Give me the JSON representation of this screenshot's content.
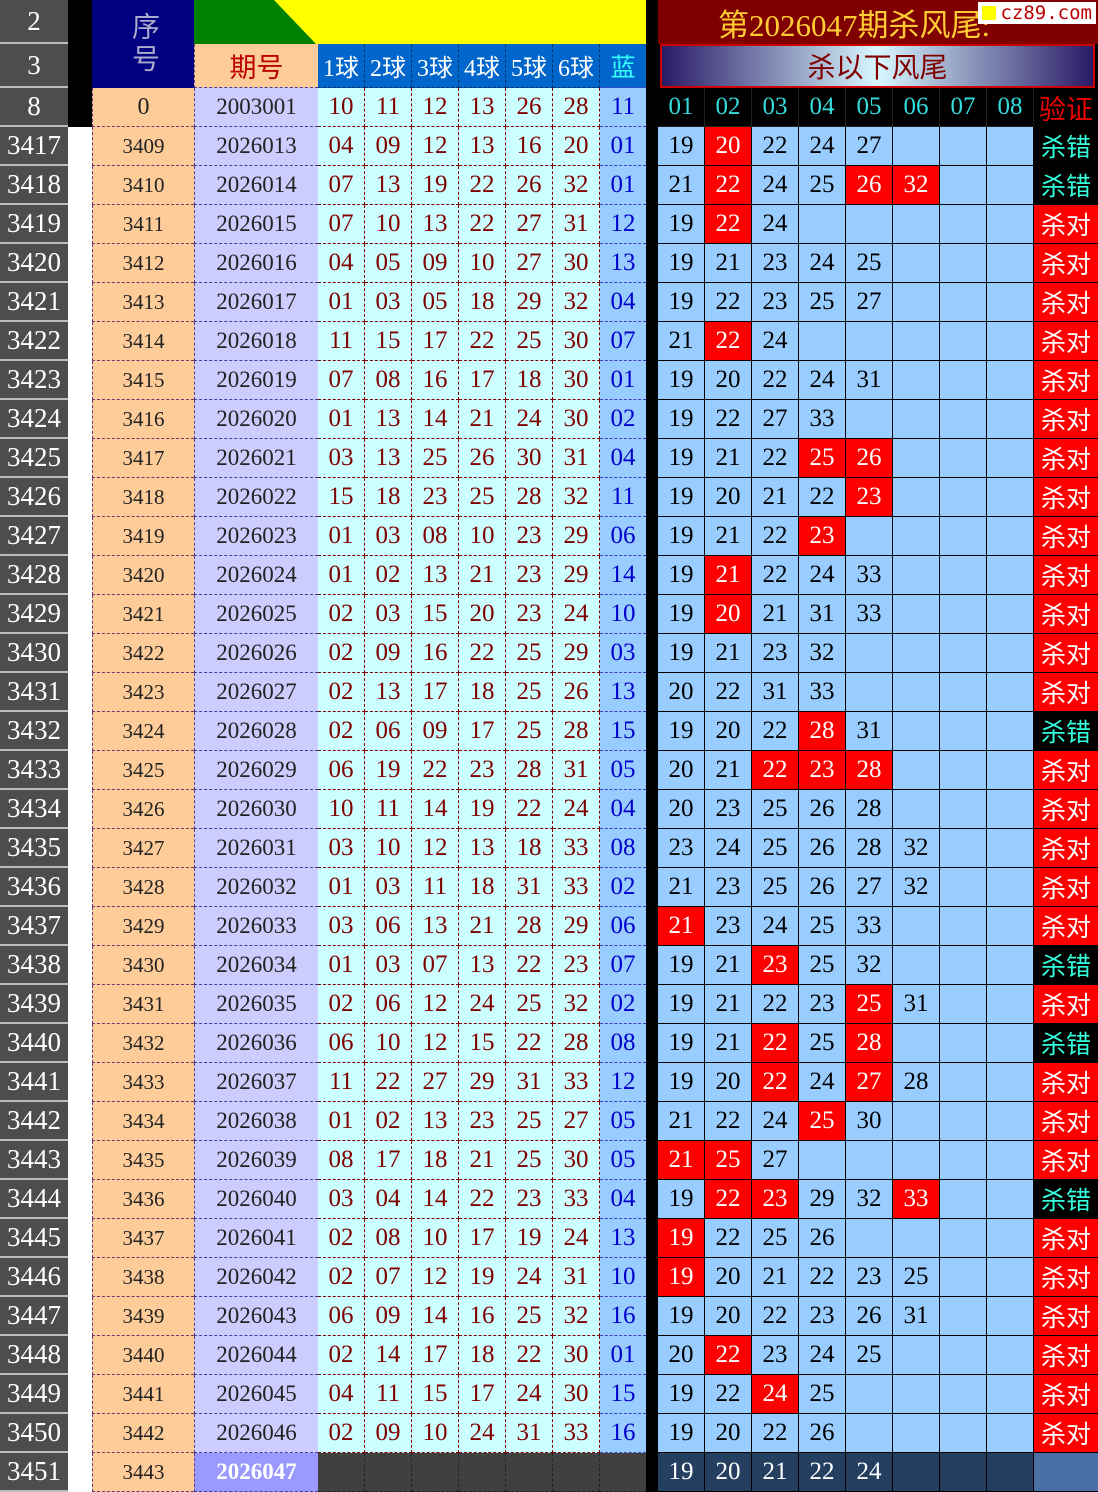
{
  "header": {
    "row_labels": [
      "2",
      "3",
      "8"
    ],
    "seq_label": "序号",
    "period_label": "期号",
    "ball_labels": [
      "1球",
      "2球",
      "3球",
      "4球",
      "5球",
      "6球"
    ],
    "blue_label": "蓝",
    "title": "第2026047期杀风尾:",
    "banner": "杀以下风尾",
    "kill_cols": [
      "01",
      "02",
      "03",
      "04",
      "05",
      "06",
      "07",
      "08"
    ],
    "verify_label": "验证",
    "watermark": "cz89.com",
    "base_row": {
      "seq": "0",
      "period": "2003001",
      "balls": [
        "10",
        "11",
        "12",
        "13",
        "26",
        "28"
      ],
      "blue": "11"
    }
  },
  "colors": {
    "hit": "#ff0000",
    "correct_bg": "#ff0000",
    "wrong_bg": "#000000",
    "wrong_text": "#33ffdd",
    "title": "#ffcc33"
  },
  "rows": [
    [
      "3417",
      "3409",
      "2026013",
      [
        "04",
        "09",
        "12",
        "13",
        "16",
        "20"
      ],
      "01",
      [
        "19",
        "20",
        "22",
        "24",
        "27"
      ],
      "杀错"
    ],
    [
      "3418",
      "3410",
      "2026014",
      [
        "07",
        "13",
        "19",
        "22",
        "26",
        "32"
      ],
      "01",
      [
        "21",
        "22",
        "24",
        "25",
        "26",
        "32"
      ],
      "杀错"
    ],
    [
      "3419",
      "3411",
      "2026015",
      [
        "07",
        "10",
        "13",
        "22",
        "27",
        "31"
      ],
      "12",
      [
        "19",
        "22",
        "24"
      ],
      "杀对"
    ],
    [
      "3420",
      "3412",
      "2026016",
      [
        "04",
        "05",
        "09",
        "10",
        "27",
        "30"
      ],
      "13",
      [
        "19",
        "21",
        "23",
        "24",
        "25"
      ],
      "杀对"
    ],
    [
      "3421",
      "3413",
      "2026017",
      [
        "01",
        "03",
        "05",
        "18",
        "29",
        "32"
      ],
      "04",
      [
        "19",
        "22",
        "23",
        "25",
        "27"
      ],
      "杀对"
    ],
    [
      "3422",
      "3414",
      "2026018",
      [
        "11",
        "15",
        "17",
        "22",
        "25",
        "30"
      ],
      "07",
      [
        "21",
        "22",
        "24"
      ],
      "杀对"
    ],
    [
      "3423",
      "3415",
      "2026019",
      [
        "07",
        "08",
        "16",
        "17",
        "18",
        "30"
      ],
      "01",
      [
        "19",
        "20",
        "22",
        "24",
        "31"
      ],
      "杀对"
    ],
    [
      "3424",
      "3416",
      "2026020",
      [
        "01",
        "13",
        "14",
        "21",
        "24",
        "30"
      ],
      "02",
      [
        "19",
        "22",
        "27",
        "33"
      ],
      "杀对"
    ],
    [
      "3425",
      "3417",
      "2026021",
      [
        "03",
        "13",
        "25",
        "26",
        "30",
        "31"
      ],
      "04",
      [
        "19",
        "21",
        "22",
        "25",
        "26"
      ],
      "杀对"
    ],
    [
      "3426",
      "3418",
      "2026022",
      [
        "15",
        "18",
        "23",
        "25",
        "28",
        "32"
      ],
      "11",
      [
        "19",
        "20",
        "21",
        "22",
        "23"
      ],
      "杀对"
    ],
    [
      "3427",
      "3419",
      "2026023",
      [
        "01",
        "03",
        "08",
        "10",
        "23",
        "29"
      ],
      "06",
      [
        "19",
        "21",
        "22",
        "23"
      ],
      "杀对"
    ],
    [
      "3428",
      "3420",
      "2026024",
      [
        "01",
        "02",
        "13",
        "21",
        "23",
        "29"
      ],
      "14",
      [
        "19",
        "21",
        "22",
        "24",
        "33"
      ],
      "杀对"
    ],
    [
      "3429",
      "3421",
      "2026025",
      [
        "02",
        "03",
        "15",
        "20",
        "23",
        "24"
      ],
      "10",
      [
        "19",
        "20",
        "21",
        "31",
        "33"
      ],
      "杀对"
    ],
    [
      "3430",
      "3422",
      "2026026",
      [
        "02",
        "09",
        "16",
        "22",
        "25",
        "29"
      ],
      "03",
      [
        "19",
        "21",
        "23",
        "32"
      ],
      "杀对"
    ],
    [
      "3431",
      "3423",
      "2026027",
      [
        "02",
        "13",
        "17",
        "18",
        "25",
        "26"
      ],
      "13",
      [
        "20",
        "22",
        "31",
        "33"
      ],
      "杀对"
    ],
    [
      "3432",
      "3424",
      "2026028",
      [
        "02",
        "06",
        "09",
        "17",
        "25",
        "28"
      ],
      "15",
      [
        "19",
        "20",
        "22",
        "28",
        "31"
      ],
      "杀错"
    ],
    [
      "3433",
      "3425",
      "2026029",
      [
        "06",
        "19",
        "22",
        "23",
        "28",
        "31"
      ],
      "05",
      [
        "20",
        "21",
        "22",
        "23",
        "28"
      ],
      "杀对"
    ],
    [
      "3434",
      "3426",
      "2026030",
      [
        "10",
        "11",
        "14",
        "19",
        "22",
        "24"
      ],
      "04",
      [
        "20",
        "23",
        "25",
        "26",
        "28"
      ],
      "杀对"
    ],
    [
      "3435",
      "3427",
      "2026031",
      [
        "03",
        "10",
        "12",
        "13",
        "18",
        "33"
      ],
      "08",
      [
        "23",
        "24",
        "25",
        "26",
        "28",
        "32"
      ],
      "杀对"
    ],
    [
      "3436",
      "3428",
      "2026032",
      [
        "01",
        "03",
        "11",
        "18",
        "31",
        "33"
      ],
      "02",
      [
        "21",
        "23",
        "25",
        "26",
        "27",
        "32"
      ],
      "杀对"
    ],
    [
      "3437",
      "3429",
      "2026033",
      [
        "03",
        "06",
        "13",
        "21",
        "28",
        "29"
      ],
      "06",
      [
        "21",
        "23",
        "24",
        "25",
        "33"
      ],
      "杀对"
    ],
    [
      "3438",
      "3430",
      "2026034",
      [
        "01",
        "03",
        "07",
        "13",
        "22",
        "23"
      ],
      "07",
      [
        "19",
        "21",
        "23",
        "25",
        "32"
      ],
      "杀错"
    ],
    [
      "3439",
      "3431",
      "2026035",
      [
        "02",
        "06",
        "12",
        "24",
        "25",
        "32"
      ],
      "02",
      [
        "19",
        "21",
        "22",
        "23",
        "25",
        "31"
      ],
      "杀对"
    ],
    [
      "3440",
      "3432",
      "2026036",
      [
        "06",
        "10",
        "12",
        "15",
        "22",
        "28"
      ],
      "08",
      [
        "19",
        "21",
        "22",
        "25",
        "28"
      ],
      "杀错"
    ],
    [
      "3441",
      "3433",
      "2026037",
      [
        "11",
        "22",
        "27",
        "29",
        "31",
        "33"
      ],
      "12",
      [
        "19",
        "20",
        "22",
        "24",
        "27",
        "28"
      ],
      "杀对"
    ],
    [
      "3442",
      "3434",
      "2026038",
      [
        "01",
        "02",
        "13",
        "23",
        "25",
        "27"
      ],
      "05",
      [
        "21",
        "22",
        "24",
        "25",
        "30"
      ],
      "杀对"
    ],
    [
      "3443",
      "3435",
      "2026039",
      [
        "08",
        "17",
        "18",
        "21",
        "25",
        "30"
      ],
      "05",
      [
        "21",
        "25",
        "27"
      ],
      "杀对"
    ],
    [
      "3444",
      "3436",
      "2026040",
      [
        "03",
        "04",
        "14",
        "22",
        "23",
        "33"
      ],
      "04",
      [
        "19",
        "22",
        "23",
        "29",
        "32",
        "33"
      ],
      "杀错"
    ],
    [
      "3445",
      "3437",
      "2026041",
      [
        "02",
        "08",
        "10",
        "17",
        "19",
        "24"
      ],
      "13",
      [
        "19",
        "22",
        "25",
        "26"
      ],
      "杀对"
    ],
    [
      "3446",
      "3438",
      "2026042",
      [
        "02",
        "07",
        "12",
        "19",
        "24",
        "31"
      ],
      "10",
      [
        "19",
        "20",
        "21",
        "22",
        "23",
        "25"
      ],
      "杀对"
    ],
    [
      "3447",
      "3439",
      "2026043",
      [
        "06",
        "09",
        "14",
        "16",
        "25",
        "32"
      ],
      "16",
      [
        "19",
        "20",
        "22",
        "23",
        "26",
        "31"
      ],
      "杀对"
    ],
    [
      "3448",
      "3440",
      "2026044",
      [
        "02",
        "14",
        "17",
        "18",
        "22",
        "30"
      ],
      "01",
      [
        "20",
        "22",
        "23",
        "24",
        "25"
      ],
      "杀对"
    ],
    [
      "3449",
      "3441",
      "2026045",
      [
        "04",
        "11",
        "15",
        "17",
        "24",
        "30"
      ],
      "15",
      [
        "19",
        "22",
        "24",
        "25"
      ],
      "杀对"
    ],
    [
      "3450",
      "3442",
      "2026046",
      [
        "02",
        "09",
        "10",
        "24",
        "31",
        "33"
      ],
      "16",
      [
        "19",
        "20",
        "22",
        "26"
      ],
      "杀对"
    ],
    [
      "3451",
      "3443",
      "2026047",
      [
        "",
        "",
        "",
        "",
        "",
        ""
      ],
      "",
      [
        "19",
        "20",
        "21",
        "22",
        "24"
      ],
      ""
    ]
  ]
}
